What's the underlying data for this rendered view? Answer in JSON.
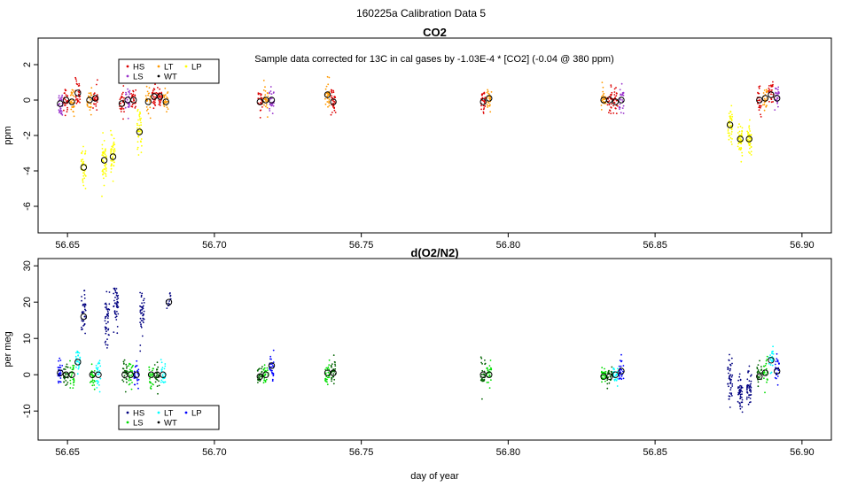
{
  "page_title": "160225a   Calibration Data 5",
  "colors": {
    "HS": "#dd0000",
    "LS": "#9933cc",
    "LT": "#ff9900",
    "WT": "#000000",
    "LP": "#ffff00",
    "o2_HS": "#000080",
    "o2_LS": "#00dd00",
    "o2_LT": "#00ffff",
    "o2_WT": "#000000",
    "o2_LP": "#0000ff",
    "o2_dark_green": "#006400",
    "marker": "#000000"
  },
  "chart_data": [
    {
      "type": "scatter",
      "title": "CO2",
      "annotation": "Sample data corrected for 13C in cal gases by -1.03E-4 * [CO2] (-0.04 @ 380 ppm)",
      "xlabel": "",
      "ylabel": "ppm",
      "xlim": [
        56.64,
        56.91
      ],
      "ylim": [
        -7.5,
        3.5
      ],
      "xticks": [
        56.65,
        56.7,
        56.75,
        56.8,
        56.85,
        56.9
      ],
      "xtick_labels": [
        "56.65",
        "56.70",
        "56.75",
        "56.80",
        "56.85",
        "56.90"
      ],
      "yticks": [
        -6,
        -4,
        -2,
        0,
        2
      ],
      "ytick_labels": [
        "-6",
        "-4",
        "-2",
        "0",
        "2"
      ],
      "legend": {
        "position": "top-left",
        "entries": [
          {
            "label": "HS",
            "color_key": "HS"
          },
          {
            "label": "LT",
            "color_key": "LT"
          },
          {
            "label": "LP",
            "color_key": "LP"
          },
          {
            "label": "LS",
            "color_key": "LS"
          },
          {
            "label": "WT",
            "color_key": "WT"
          }
        ]
      },
      "clusters": [
        {
          "x": 56.6475,
          "color_key": "LS",
          "y": -0.2,
          "spread": 0.8,
          "n": 30
        },
        {
          "x": 56.6495,
          "color_key": "HS",
          "y": 0.0,
          "spread": 0.8,
          "n": 28
        },
        {
          "x": 56.6515,
          "color_key": "LT",
          "y": -0.1,
          "spread": 0.8,
          "n": 28
        },
        {
          "x": 56.6535,
          "color_key": "HS",
          "y": 0.4,
          "spread": 0.9,
          "n": 28
        },
        {
          "x": 56.6555,
          "color_key": "LP",
          "y": -3.8,
          "spread": 1.2,
          "n": 40
        },
        {
          "x": 56.6575,
          "color_key": "LT",
          "y": 0.0,
          "spread": 0.8,
          "n": 26
        },
        {
          "x": 56.6595,
          "color_key": "HS",
          "y": 0.1,
          "spread": 0.8,
          "n": 26
        },
        {
          "x": 56.6625,
          "color_key": "LP",
          "y": -3.4,
          "spread": 1.3,
          "n": 45
        },
        {
          "x": 56.6655,
          "color_key": "LP",
          "y": -3.2,
          "spread": 1.2,
          "n": 45
        },
        {
          "x": 56.6685,
          "color_key": "HS",
          "y": -0.2,
          "spread": 0.8,
          "n": 26
        },
        {
          "x": 56.6705,
          "color_key": "LS",
          "y": 0.0,
          "spread": 0.8,
          "n": 26
        },
        {
          "x": 56.6725,
          "color_key": "HS",
          "y": 0.0,
          "spread": 0.8,
          "n": 26
        },
        {
          "x": 56.6745,
          "color_key": "LP",
          "y": -1.8,
          "spread": 1.2,
          "n": 40
        },
        {
          "x": 56.6775,
          "color_key": "LT",
          "y": -0.1,
          "spread": 0.8,
          "n": 26
        },
        {
          "x": 56.6795,
          "color_key": "HS",
          "y": 0.2,
          "spread": 0.8,
          "n": 26
        },
        {
          "x": 56.6815,
          "color_key": "HS",
          "y": 0.2,
          "spread": 0.9,
          "n": 26
        },
        {
          "x": 56.6835,
          "color_key": "LT",
          "y": -0.1,
          "spread": 0.8,
          "n": 26
        },
        {
          "x": 56.7155,
          "color_key": "HS",
          "y": -0.1,
          "spread": 0.7,
          "n": 26
        },
        {
          "x": 56.7175,
          "color_key": "LT",
          "y": 0.0,
          "spread": 0.8,
          "n": 26
        },
        {
          "x": 56.7195,
          "color_key": "LS",
          "y": 0.0,
          "spread": 0.7,
          "n": 26
        },
        {
          "x": 56.7385,
          "color_key": "LT",
          "y": 0.3,
          "spread": 0.9,
          "n": 30
        },
        {
          "x": 56.7405,
          "color_key": "HS",
          "y": -0.1,
          "spread": 0.9,
          "n": 30
        },
        {
          "x": 56.7915,
          "color_key": "HS",
          "y": -0.1,
          "spread": 0.7,
          "n": 26
        },
        {
          "x": 56.7935,
          "color_key": "LT",
          "y": 0.1,
          "spread": 0.7,
          "n": 26
        },
        {
          "x": 56.8325,
          "color_key": "LT",
          "y": 0.0,
          "spread": 0.7,
          "n": 26
        },
        {
          "x": 56.8345,
          "color_key": "HS",
          "y": 0.0,
          "spread": 0.8,
          "n": 26
        },
        {
          "x": 56.8365,
          "color_key": "HS",
          "y": -0.1,
          "spread": 0.8,
          "n": 26
        },
        {
          "x": 56.8385,
          "color_key": "LS",
          "y": 0.0,
          "spread": 0.8,
          "n": 26
        },
        {
          "x": 56.8755,
          "color_key": "LP",
          "y": -1.4,
          "spread": 1.4,
          "n": 45
        },
        {
          "x": 56.879,
          "color_key": "LP",
          "y": -2.2,
          "spread": 1.0,
          "n": 45
        },
        {
          "x": 56.882,
          "color_key": "LP",
          "y": -2.2,
          "spread": 1.0,
          "n": 45
        },
        {
          "x": 56.8855,
          "color_key": "HS",
          "y": 0.0,
          "spread": 0.8,
          "n": 26
        },
        {
          "x": 56.8875,
          "color_key": "LT",
          "y": 0.1,
          "spread": 0.8,
          "n": 26
        },
        {
          "x": 56.8895,
          "color_key": "HS",
          "y": 0.3,
          "spread": 0.9,
          "n": 26
        },
        {
          "x": 56.8915,
          "color_key": "LS",
          "y": 0.1,
          "spread": 0.8,
          "n": 26
        }
      ],
      "means": [
        {
          "x": 56.6475,
          "y": -0.2
        },
        {
          "x": 56.6495,
          "y": 0.0
        },
        {
          "x": 56.6515,
          "y": -0.1
        },
        {
          "x": 56.6535,
          "y": 0.4
        },
        {
          "x": 56.6555,
          "y": -3.8
        },
        {
          "x": 56.6575,
          "y": 0.0
        },
        {
          "x": 56.6595,
          "y": 0.1
        },
        {
          "x": 56.6625,
          "y": -3.4
        },
        {
          "x": 56.6655,
          "y": -3.2
        },
        {
          "x": 56.6685,
          "y": -0.2
        },
        {
          "x": 56.6705,
          "y": 0.0
        },
        {
          "x": 56.6725,
          "y": 0.0
        },
        {
          "x": 56.6745,
          "y": -1.8
        },
        {
          "x": 56.6775,
          "y": -0.1
        },
        {
          "x": 56.6795,
          "y": 0.2
        },
        {
          "x": 56.6815,
          "y": 0.2
        },
        {
          "x": 56.6835,
          "y": -0.1
        },
        {
          "x": 56.7155,
          "y": -0.1
        },
        {
          "x": 56.7175,
          "y": 0.0
        },
        {
          "x": 56.7195,
          "y": 0.0
        },
        {
          "x": 56.7385,
          "y": 0.3
        },
        {
          "x": 56.7405,
          "y": -0.1
        },
        {
          "x": 56.7915,
          "y": -0.1
        },
        {
          "x": 56.7935,
          "y": 0.1
        },
        {
          "x": 56.8325,
          "y": 0.0
        },
        {
          "x": 56.8345,
          "y": 0.0
        },
        {
          "x": 56.8365,
          "y": -0.1
        },
        {
          "x": 56.8385,
          "y": 0.0
        },
        {
          "x": 56.8755,
          "y": -1.4
        },
        {
          "x": 56.879,
          "y": -2.2
        },
        {
          "x": 56.882,
          "y": -2.2
        },
        {
          "x": 56.8855,
          "y": 0.0
        },
        {
          "x": 56.8875,
          "y": 0.1
        },
        {
          "x": 56.8895,
          "y": 0.3
        },
        {
          "x": 56.8915,
          "y": 0.1
        }
      ]
    },
    {
      "type": "scatter",
      "title": "d(O2/N2)",
      "xlabel": "day of year",
      "ylabel": "per meg",
      "xlim": [
        56.64,
        56.91
      ],
      "ylim": [
        -18,
        32
      ],
      "xticks": [
        56.65,
        56.7,
        56.75,
        56.8,
        56.85,
        56.9
      ],
      "xtick_labels": [
        "56.65",
        "56.70",
        "56.75",
        "56.80",
        "56.85",
        "56.90"
      ],
      "yticks": [
        -10,
        0,
        10,
        20,
        30
      ],
      "ytick_labels": [
        "-10",
        "0",
        "10",
        "20",
        "30"
      ],
      "legend": {
        "position": "bottom-left",
        "entries": [
          {
            "label": "HS",
            "color_key": "o2_HS"
          },
          {
            "label": "LT",
            "color_key": "o2_LT"
          },
          {
            "label": "LP",
            "color_key": "o2_LP"
          },
          {
            "label": "LS",
            "color_key": "o2_LS"
          },
          {
            "label": "WT",
            "color_key": "o2_WT"
          }
        ]
      },
      "clusters": [
        {
          "x": 56.6475,
          "color_key": "o2_LP",
          "y": 0.5,
          "spread": 4,
          "n": 30
        },
        {
          "x": 56.6495,
          "color_key": "o2_dark_green",
          "y": 0.0,
          "spread": 4,
          "n": 28
        },
        {
          "x": 56.6515,
          "color_key": "o2_LS",
          "y": 0.0,
          "spread": 4,
          "n": 28
        },
        {
          "x": 56.6535,
          "color_key": "o2_LT",
          "y": 3.5,
          "spread": 4,
          "n": 28
        },
        {
          "x": 56.6555,
          "color_key": "o2_HS",
          "y": 16,
          "spread": 7,
          "n": 35
        },
        {
          "x": 56.6585,
          "color_key": "o2_LS",
          "y": 0.0,
          "spread": 4,
          "n": 26
        },
        {
          "x": 56.6605,
          "color_key": "o2_LT",
          "y": 0.0,
          "spread": 4,
          "n": 26
        },
        {
          "x": 56.6635,
          "color_key": "o2_HS",
          "y": 15,
          "spread": 8,
          "n": 45
        },
        {
          "x": 56.6665,
          "color_key": "o2_HS",
          "y": 19,
          "spread": 7,
          "n": 45
        },
        {
          "x": 56.6695,
          "color_key": "o2_dark_green",
          "y": 0.0,
          "spread": 4,
          "n": 26
        },
        {
          "x": 56.6715,
          "color_key": "o2_LS",
          "y": 0.0,
          "spread": 4,
          "n": 26
        },
        {
          "x": 56.6735,
          "color_key": "o2_LP",
          "y": 0.0,
          "spread": 4,
          "n": 26
        },
        {
          "x": 56.6755,
          "color_key": "o2_HS",
          "y": 17,
          "spread": 7,
          "n": 40
        },
        {
          "x": 56.6785,
          "color_key": "o2_LS",
          "y": 0.0,
          "spread": 4,
          "n": 26
        },
        {
          "x": 56.6805,
          "color_key": "o2_dark_green",
          "y": 0.0,
          "spread": 4,
          "n": 26
        },
        {
          "x": 56.6825,
          "color_key": "o2_LT",
          "y": 0.0,
          "spread": 4,
          "n": 26
        },
        {
          "x": 56.6845,
          "color_key": "o2_HS",
          "y": 20,
          "spread": 3,
          "n": 14
        },
        {
          "x": 56.7155,
          "color_key": "o2_dark_green",
          "y": -0.5,
          "spread": 3,
          "n": 26
        },
        {
          "x": 56.7175,
          "color_key": "o2_LS",
          "y": 0.0,
          "spread": 3,
          "n": 26
        },
        {
          "x": 56.7195,
          "color_key": "o2_LP",
          "y": 2.5,
          "spread": 4,
          "n": 26
        },
        {
          "x": 56.7385,
          "color_key": "o2_LS",
          "y": 0.5,
          "spread": 3,
          "n": 28
        },
        {
          "x": 56.7405,
          "color_key": "o2_dark_green",
          "y": 0.5,
          "spread": 4,
          "n": 28
        },
        {
          "x": 56.7915,
          "color_key": "o2_dark_green",
          "y": 0.0,
          "spread": 6,
          "n": 28
        },
        {
          "x": 56.7935,
          "color_key": "o2_LS",
          "y": 0.0,
          "spread": 4,
          "n": 26
        },
        {
          "x": 56.8325,
          "color_key": "o2_LS",
          "y": -0.5,
          "spread": 3,
          "n": 26
        },
        {
          "x": 56.8345,
          "color_key": "o2_dark_green",
          "y": -0.5,
          "spread": 3,
          "n": 26
        },
        {
          "x": 56.8365,
          "color_key": "o2_LT",
          "y": 0.0,
          "spread": 3,
          "n": 26
        },
        {
          "x": 56.8385,
          "color_key": "o2_LP",
          "y": 1.0,
          "spread": 4,
          "n": 26
        },
        {
          "x": 56.8755,
          "color_key": "o2_HS",
          "y": -1.5,
          "spread": 8,
          "n": 45
        },
        {
          "x": 56.879,
          "color_key": "o2_HS",
          "y": -5.5,
          "spread": 6,
          "n": 45
        },
        {
          "x": 56.882,
          "color_key": "o2_HS",
          "y": -3.5,
          "spread": 6,
          "n": 45
        },
        {
          "x": 56.8855,
          "color_key": "o2_dark_green",
          "y": -0.5,
          "spread": 4,
          "n": 26
        },
        {
          "x": 56.8875,
          "color_key": "o2_LS",
          "y": 0.5,
          "spread": 4,
          "n": 26
        },
        {
          "x": 56.8895,
          "color_key": "o2_LT",
          "y": 4.0,
          "spread": 4,
          "n": 26
        },
        {
          "x": 56.8915,
          "color_key": "o2_LP",
          "y": 1.0,
          "spread": 4,
          "n": 26
        }
      ],
      "means": [
        {
          "x": 56.6475,
          "y": 0.5
        },
        {
          "x": 56.6495,
          "y": 0.0
        },
        {
          "x": 56.6515,
          "y": 0.0
        },
        {
          "x": 56.6535,
          "y": 3.5
        },
        {
          "x": 56.6555,
          "y": 16
        },
        {
          "x": 56.6585,
          "y": 0.0
        },
        {
          "x": 56.6605,
          "y": 0.0
        },
        {
          "x": 56.6695,
          "y": 0.0
        },
        {
          "x": 56.6715,
          "y": 0.0
        },
        {
          "x": 56.6735,
          "y": 0.0
        },
        {
          "x": 56.6785,
          "y": 0.0
        },
        {
          "x": 56.6805,
          "y": 0.0
        },
        {
          "x": 56.6825,
          "y": 0.0
        },
        {
          "x": 56.6845,
          "y": 20
        },
        {
          "x": 56.7155,
          "y": -0.5
        },
        {
          "x": 56.7175,
          "y": 0.0
        },
        {
          "x": 56.7195,
          "y": 2.5
        },
        {
          "x": 56.7385,
          "y": 0.5
        },
        {
          "x": 56.7405,
          "y": 0.5
        },
        {
          "x": 56.7915,
          "y": 0.0
        },
        {
          "x": 56.7935,
          "y": 0.0
        },
        {
          "x": 56.8325,
          "y": -0.5
        },
        {
          "x": 56.8345,
          "y": -0.5
        },
        {
          "x": 56.8365,
          "y": 0.0
        },
        {
          "x": 56.8385,
          "y": 1.0
        },
        {
          "x": 56.8855,
          "y": -0.5
        },
        {
          "x": 56.8875,
          "y": 0.5
        },
        {
          "x": 56.8895,
          "y": 4.0
        },
        {
          "x": 56.8915,
          "y": 1.0
        }
      ]
    }
  ]
}
